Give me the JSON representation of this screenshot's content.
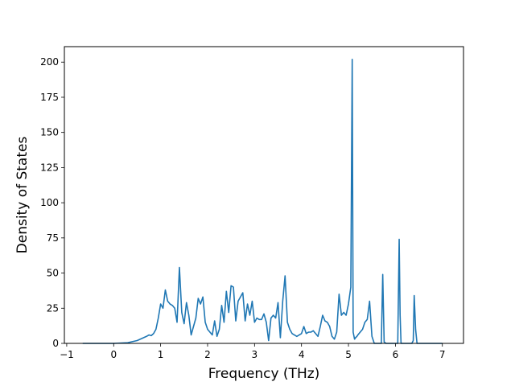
{
  "chart_data": {
    "type": "line",
    "title": "",
    "xlabel": "Frequency (THz)",
    "ylabel": "Density of States",
    "xlim": [
      -1.05,
      7.45
    ],
    "ylim": [
      0,
      211
    ],
    "xticks": [
      -1,
      0,
      1,
      2,
      3,
      4,
      5,
      6,
      7
    ],
    "yticks": [
      0,
      25,
      50,
      75,
      100,
      125,
      150,
      175,
      200
    ],
    "grid": false,
    "legend": "none",
    "series": [
      {
        "color": "#1f77b4",
        "x": [
          -0.66,
          0.0,
          0.3,
          0.5,
          0.6,
          0.7,
          0.75,
          0.8,
          0.85,
          0.9,
          0.95,
          1.0,
          1.05,
          1.1,
          1.15,
          1.2,
          1.25,
          1.3,
          1.35,
          1.4,
          1.45,
          1.5,
          1.55,
          1.6,
          1.65,
          1.7,
          1.75,
          1.8,
          1.85,
          1.9,
          1.95,
          2.0,
          2.05,
          2.1,
          2.15,
          2.2,
          2.25,
          2.3,
          2.35,
          2.4,
          2.45,
          2.5,
          2.55,
          2.6,
          2.65,
          2.7,
          2.75,
          2.8,
          2.85,
          2.9,
          2.95,
          3.0,
          3.05,
          3.1,
          3.15,
          3.2,
          3.25,
          3.3,
          3.35,
          3.4,
          3.45,
          3.5,
          3.55,
          3.6,
          3.65,
          3.7,
          3.75,
          3.8,
          3.85,
          3.9,
          3.95,
          4.0,
          4.05,
          4.1,
          4.15,
          4.2,
          4.25,
          4.3,
          4.35,
          4.4,
          4.45,
          4.5,
          4.55,
          4.6,
          4.65,
          4.7,
          4.75,
          4.8,
          4.85,
          4.9,
          4.95,
          5.0,
          5.05,
          5.08,
          5.1,
          5.13,
          5.15,
          5.18,
          5.2,
          5.25,
          5.3,
          5.35,
          5.4,
          5.45,
          5.5,
          5.55,
          5.6,
          5.65,
          5.7,
          5.73,
          5.76,
          5.8,
          5.9,
          6.0,
          6.05,
          6.08,
          6.1,
          6.12,
          6.15,
          6.2,
          6.3,
          6.35,
          6.38,
          6.4,
          6.43,
          6.46,
          6.5,
          6.7,
          7.0
        ],
        "values": [
          0,
          0,
          0.5,
          2,
          3.5,
          5,
          6,
          5.5,
          7,
          10,
          18,
          28,
          25,
          38,
          30,
          28,
          27,
          25,
          15,
          54,
          22,
          14,
          29,
          20,
          6,
          12,
          18,
          32,
          28,
          33,
          15,
          10,
          8,
          6,
          16,
          5,
          10,
          27,
          15,
          37,
          22,
          41,
          40,
          16,
          30,
          33,
          36,
          16,
          28,
          20,
          30,
          15,
          18,
          17,
          17,
          21,
          15,
          2,
          18,
          20,
          18,
          29,
          4,
          30,
          48,
          15,
          10,
          7,
          6,
          5,
          6,
          7,
          12,
          7,
          8,
          8,
          9,
          7,
          5,
          12,
          20,
          16,
          15,
          12,
          5,
          3,
          8,
          35,
          20,
          22,
          20,
          28,
          40,
          202,
          8,
          3,
          4,
          5,
          6,
          8,
          10,
          15,
          17,
          30,
          5,
          0,
          0,
          0,
          0,
          49,
          1,
          0,
          0,
          0,
          0,
          74,
          20,
          0,
          0,
          0,
          0,
          0,
          2,
          34,
          10,
          0,
          0,
          0,
          0
        ]
      }
    ]
  }
}
